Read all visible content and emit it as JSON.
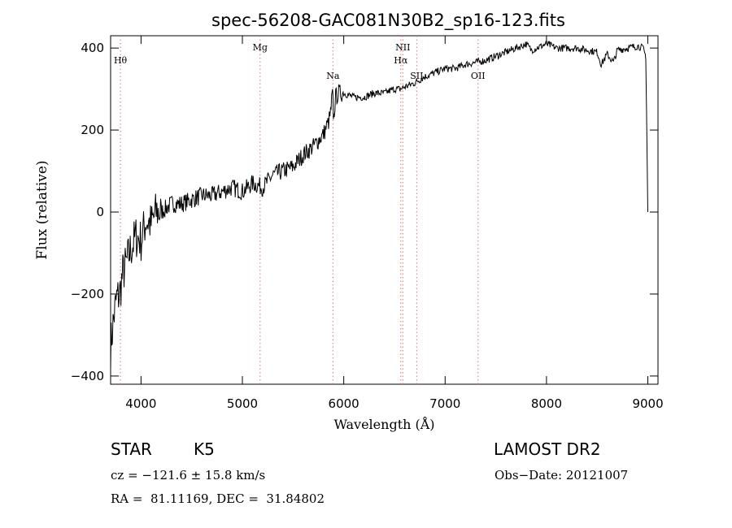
{
  "chart_data": {
    "type": "line",
    "title": "spec-56208-GAC081N30B2_sp16-123.fits",
    "xlabel": "Wavelength (Å)",
    "ylabel": "Flux (relative)",
    "xlim": [
      3700,
      9100
    ],
    "ylim": [
      -420,
      430
    ],
    "x_ticks": [
      4000,
      5000,
      6000,
      7000,
      8000,
      9000
    ],
    "x_tick_labels": [
      "4000",
      "5000",
      "6000",
      "7000",
      "8000",
      "9000"
    ],
    "y_ticks": [
      -400,
      -200,
      0,
      200,
      400
    ],
    "y_tick_labels": [
      "−400",
      "−200",
      "0",
      "200",
      "400"
    ],
    "grid": false,
    "series": [
      {
        "x": [
          3700,
          3730,
          3760,
          3790,
          3820,
          3850,
          3900,
          3950,
          4000,
          4050,
          4100,
          4150,
          4200,
          4300,
          4400,
          4500,
          4600,
          4700,
          4800,
          4900,
          5000,
          5100,
          5200,
          5300,
          5400,
          5500,
          5600,
          5700,
          5800,
          5850,
          5870,
          5880,
          5890,
          5895,
          5900,
          5920,
          5950,
          6000,
          6100,
          6200,
          6300,
          6400,
          6500,
          6560,
          6600,
          6700,
          6800,
          6900,
          7000,
          7100,
          7200,
          7300,
          7400,
          7500,
          7600,
          7700,
          7750,
          7800,
          7850,
          7900,
          8000,
          8100,
          8200,
          8300,
          8400,
          8500,
          8540,
          8600,
          8660,
          8700,
          8800,
          8900,
          8950,
          8980,
          9000
        ],
        "y": [
          -330,
          -260,
          -210,
          -200,
          -150,
          -130,
          -90,
          -60,
          -70,
          -20,
          -30,
          0,
          0,
          20,
          20,
          30,
          40,
          40,
          50,
          60,
          50,
          70,
          60,
          90,
          100,
          110,
          140,
          160,
          190,
          220,
          240,
          270,
          290,
          250,
          230,
          280,
          290,
          290,
          280,
          280,
          290,
          290,
          300,
          300,
          305,
          315,
          330,
          340,
          350,
          350,
          360,
          365,
          370,
          380,
          390,
          400,
          405,
          410,
          395,
          400,
          410,
          400,
          400,
          400,
          395,
          390,
          360,
          385,
          365,
          395,
          400,
          405,
          400,
          380,
          0
        ]
      }
    ],
    "lines": [
      {
        "label": "Hθ",
        "x": 3797
      },
      {
        "label": "Mg",
        "x": 5175
      },
      {
        "label": "Na",
        "x": 5893
      },
      {
        "label": "Hα",
        "x": 6563
      },
      {
        "label": "NII",
        "x": 6583
      },
      {
        "label": "SII",
        "x": 6720
      },
      {
        "label": "OII",
        "x": 7325
      }
    ]
  },
  "info": {
    "object_type": "STAR",
    "subclass": "K5",
    "survey": "LAMOST DR2",
    "cz_line": "cz = −121.6 ± 15.8 km/s",
    "obs_date": "Obs−Date: 20121007",
    "coords": "RA =  81.11169, DEC =  31.84802"
  },
  "colors": {
    "spectrum": "#000000",
    "line_markers": "#e07070"
  }
}
